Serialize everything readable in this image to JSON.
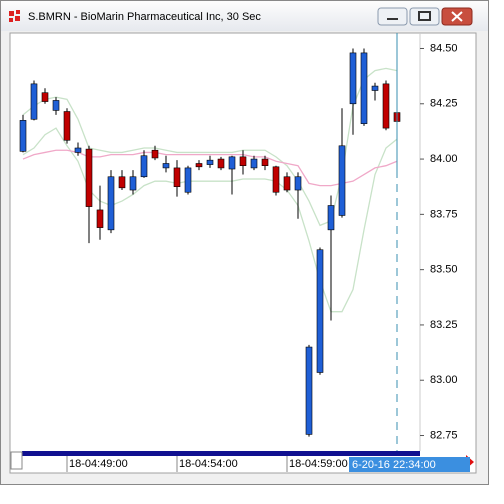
{
  "window_title": "S.BMRN - BioMarin Pharmaceutical Inc, 30 Sec",
  "chart_data": {
    "type": "candlestick",
    "x": [
      null,
      null,
      null,
      null,
      "18-04:49:00",
      null,
      null,
      null,
      null,
      null,
      null,
      null,
      null,
      null,
      "18-04:54:00",
      null,
      null,
      null,
      null,
      null,
      null,
      null,
      null,
      null,
      "18-04:59:00",
      null,
      null,
      null,
      null,
      null,
      null,
      null,
      null,
      null,
      null
    ],
    "open": [
      84.035,
      84.18,
      84.3,
      84.22,
      84.215,
      84.03,
      84.045,
      83.77,
      83.68,
      83.92,
      83.86,
      83.92,
      84.04,
      83.96,
      83.96,
      83.85,
      83.98,
      83.975,
      84.0,
      83.955,
      84.01,
      83.96,
      84.0,
      83.965,
      83.92,
      83.86,
      82.755,
      83.035,
      83.68,
      83.745,
      84.25,
      84.16,
      84.31,
      84.34,
      84.21
    ],
    "high": [
      84.2,
      84.355,
      84.32,
      84.28,
      84.23,
      84.075,
      84.06,
      83.88,
      83.95,
      83.95,
      83.95,
      84.04,
      84.06,
      84.015,
      83.995,
      83.97,
      83.995,
      84.015,
      84.01,
      84.015,
      84.04,
      84.015,
      84.015,
      83.97,
      83.94,
      83.94,
      83.16,
      83.6,
      83.835,
      84.23,
      84.5,
      84.5,
      84.345,
      84.355,
      84.245
    ],
    "low": [
      84.03,
      84.175,
      84.25,
      84.2,
      84.07,
      84.015,
      83.62,
      83.635,
      83.665,
      83.86,
      83.84,
      83.915,
      83.995,
      83.94,
      83.83,
      83.84,
      83.95,
      83.96,
      83.95,
      83.84,
      83.93,
      83.95,
      83.95,
      83.835,
      83.85,
      83.73,
      82.745,
      83.025,
      83.27,
      83.735,
      84.11,
      84.15,
      84.265,
      84.13,
      84.13
    ],
    "close": [
      84.175,
      84.34,
      84.26,
      84.265,
      84.085,
      84.05,
      83.785,
      83.69,
      83.92,
      83.87,
      83.92,
      84.015,
      84.005,
      83.98,
      83.875,
      83.96,
      83.965,
      83.995,
      83.96,
      84.01,
      83.97,
      84.0,
      83.97,
      83.85,
      83.86,
      83.92,
      83.15,
      83.59,
      83.79,
      84.06,
      84.48,
      84.48,
      84.33,
      84.14,
      84.17
    ],
    "up_color": "#1f5fd6",
    "down_color": "#c00000",
    "lines": [
      {
        "color": "#c8e2c8",
        "values": [
          84.2,
          84.24,
          84.27,
          84.28,
          84.27,
          84.18,
          84.05,
          84.04,
          84.03,
          84.03,
          84.04,
          84.05,
          84.05,
          84.04,
          84.03,
          84.03,
          84.03,
          84.03,
          84.03,
          84.03,
          84.04,
          84.04,
          84.04,
          84.01,
          83.97,
          83.9,
          83.81,
          83.7,
          83.72,
          83.93,
          84.24,
          84.36,
          84.4,
          84.41,
          84.4
        ]
      },
      {
        "color": "#c8e2c8",
        "values": [
          84.02,
          84.05,
          84.11,
          84.14,
          84.06,
          83.99,
          83.86,
          83.81,
          83.79,
          83.81,
          83.84,
          83.88,
          83.9,
          83.9,
          83.89,
          83.9,
          83.9,
          83.9,
          83.9,
          83.9,
          83.91,
          83.91,
          83.91,
          83.9,
          83.86,
          83.79,
          83.63,
          83.45,
          83.31,
          83.31,
          83.41,
          83.68,
          83.93,
          84.05,
          84.09
        ]
      },
      {
        "color": "#f0a8c8",
        "values": [
          84.0,
          84.02,
          84.03,
          84.04,
          84.04,
          84.03,
          84.01,
          84.01,
          84.02,
          84.02,
          84.02,
          84.03,
          84.03,
          84.02,
          84.02,
          84.02,
          84.02,
          84.02,
          84.02,
          84.02,
          84.02,
          84.01,
          84.01,
          83.99,
          83.98,
          83.97,
          83.89,
          83.88,
          83.88,
          83.89,
          83.9,
          83.93,
          83.96,
          83.97,
          83.99
        ]
      }
    ],
    "ylim": [
      82.68,
      84.57
    ],
    "yticks": [
      {
        "value": 84.5,
        "label": "84.50"
      },
      84.25,
      {
        "value": 84,
        "label": "84.00"
      },
      83.75,
      {
        "value": 83.5,
        "label": "83.50"
      },
      83.25,
      {
        "value": 83,
        "label": "83.00"
      },
      82.75
    ],
    "cursor_label": "6-20-16 22:34:00"
  }
}
